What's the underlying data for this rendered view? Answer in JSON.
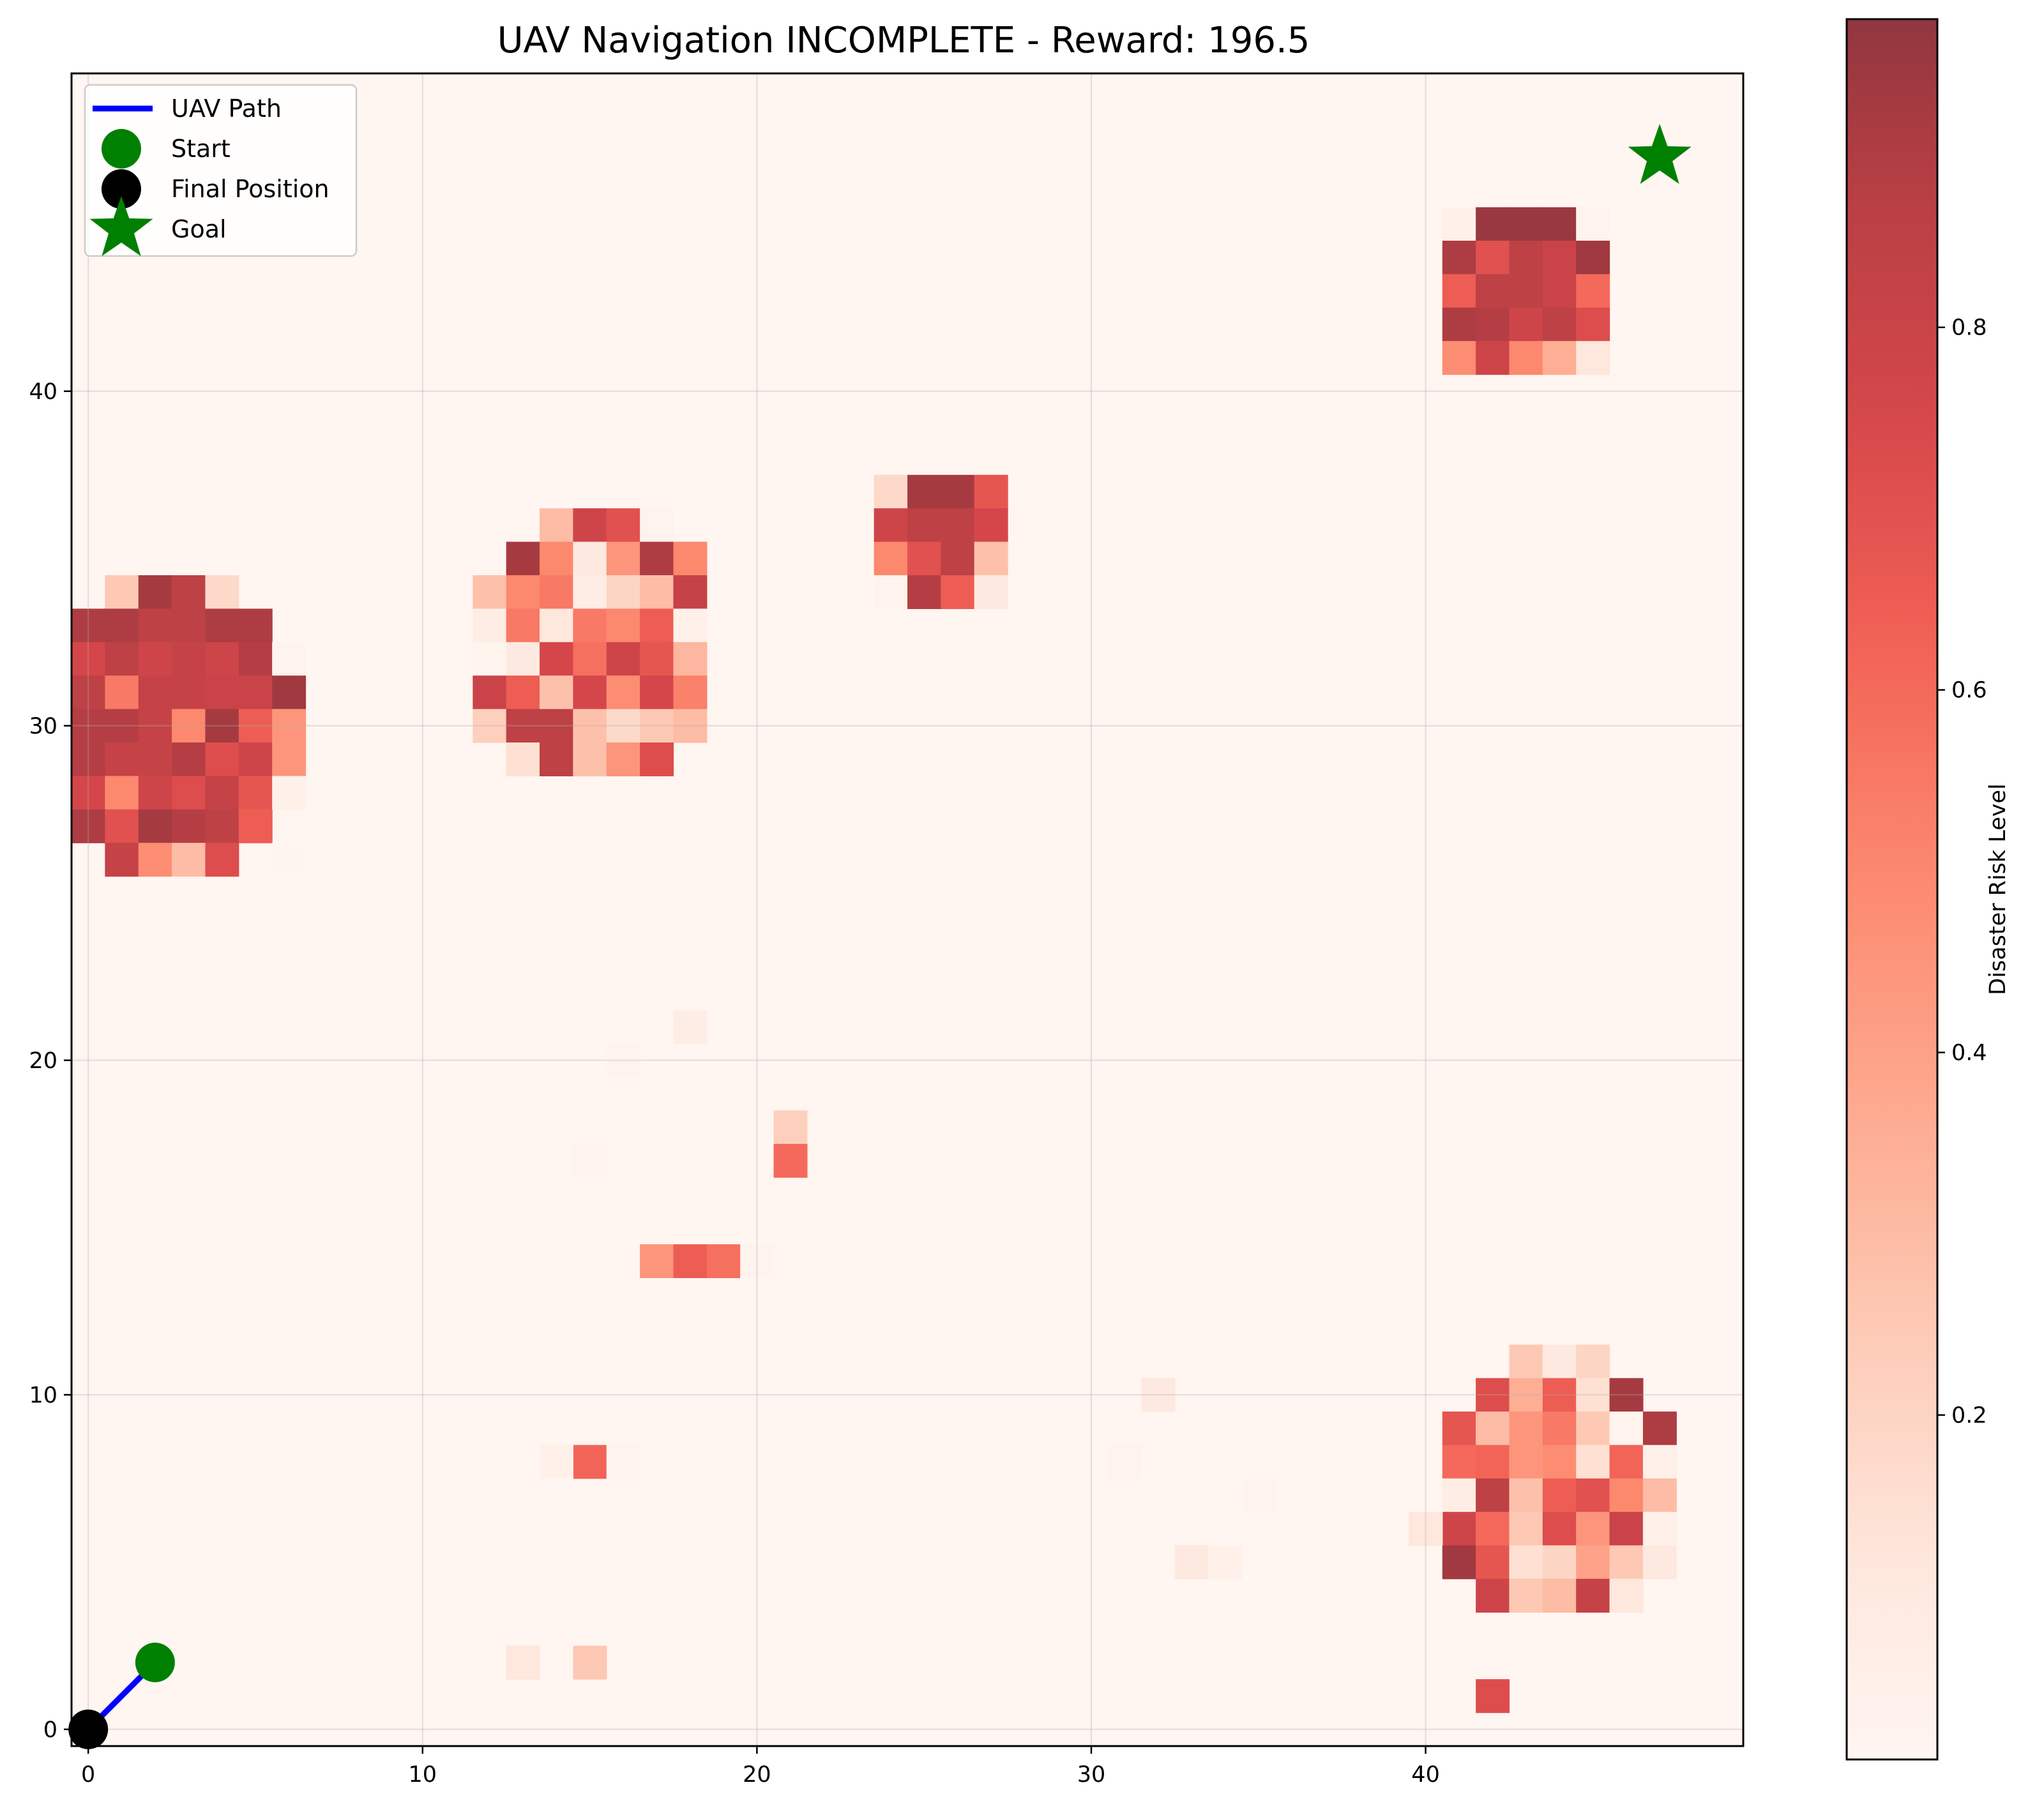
{
  "chart_data": {
    "type": "heatmap",
    "title": "UAV Navigation INCOMPLETE - Reward: 196.5",
    "xlabel": "",
    "ylabel": "",
    "xlim": [
      -0.5,
      49.5
    ],
    "ylim": [
      -0.5,
      49.5
    ],
    "x_ticks": [
      0,
      10,
      20,
      30,
      40
    ],
    "y_ticks": [
      0,
      10,
      20,
      30,
      40
    ],
    "grid": true,
    "grid_size": 50,
    "background_risk": 0.01,
    "colormap": "Reds",
    "colorbar": {
      "label": "Disaster Risk Level",
      "ticks": [
        0.2,
        0.4,
        0.6,
        0.8
      ],
      "range": [
        0.01,
        0.97
      ]
    },
    "legend": {
      "placement": "top-left",
      "items": [
        {
          "label": "UAV Path",
          "marker": "line",
          "color": "#0000ff"
        },
        {
          "label": "Start",
          "marker": "circle",
          "color": "#008000"
        },
        {
          "label": "Final Position",
          "marker": "circle",
          "color": "#000000"
        },
        {
          "label": "Goal",
          "marker": "star",
          "color": "#008000"
        }
      ]
    },
    "path": {
      "name": "UAV Path",
      "points": [
        [
          2,
          2
        ],
        [
          0,
          0
        ]
      ],
      "color": "#0000ff"
    },
    "start": {
      "x": 2,
      "y": 2,
      "color": "#008000"
    },
    "final_position": {
      "x": 0,
      "y": 0,
      "color": "#000000"
    },
    "goal": {
      "x": 47,
      "y": 47,
      "color": "#008000"
    },
    "risk_cells": [
      [
        41,
        45,
        0.05
      ],
      [
        42,
        45,
        0.95
      ],
      [
        43,
        45,
        0.95
      ],
      [
        44,
        45,
        0.95
      ],
      [
        45,
        45,
        0.03
      ],
      [
        41,
        44,
        0.9
      ],
      [
        42,
        44,
        0.7
      ],
      [
        43,
        44,
        0.85
      ],
      [
        44,
        44,
        0.8
      ],
      [
        45,
        44,
        0.93
      ],
      [
        41,
        43,
        0.65
      ],
      [
        42,
        43,
        0.85
      ],
      [
        43,
        43,
        0.85
      ],
      [
        44,
        43,
        0.8
      ],
      [
        45,
        43,
        0.6
      ],
      [
        41,
        42,
        0.9
      ],
      [
        42,
        42,
        0.88
      ],
      [
        43,
        42,
        0.78
      ],
      [
        44,
        42,
        0.85
      ],
      [
        45,
        42,
        0.72
      ],
      [
        41,
        41,
        0.48
      ],
      [
        42,
        41,
        0.78
      ],
      [
        43,
        41,
        0.5
      ],
      [
        44,
        41,
        0.35
      ],
      [
        45,
        41,
        0.12
      ],
      [
        24,
        37,
        0.18
      ],
      [
        25,
        37,
        0.92
      ],
      [
        26,
        37,
        0.92
      ],
      [
        27,
        37,
        0.68
      ],
      [
        24,
        36,
        0.78
      ],
      [
        25,
        36,
        0.85
      ],
      [
        26,
        36,
        0.85
      ],
      [
        27,
        36,
        0.75
      ],
      [
        24,
        35,
        0.5
      ],
      [
        25,
        35,
        0.7
      ],
      [
        26,
        35,
        0.85
      ],
      [
        27,
        35,
        0.28
      ],
      [
        24,
        34,
        0.03
      ],
      [
        25,
        34,
        0.88
      ],
      [
        26,
        34,
        0.65
      ],
      [
        27,
        34,
        0.1
      ],
      [
        14,
        36,
        0.3
      ],
      [
        15,
        36,
        0.78
      ],
      [
        16,
        36,
        0.7
      ],
      [
        17,
        36,
        0.03
      ],
      [
        13,
        35,
        0.92
      ],
      [
        14,
        35,
        0.5
      ],
      [
        15,
        35,
        0.1
      ],
      [
        16,
        35,
        0.45
      ],
      [
        17,
        35,
        0.9
      ],
      [
        18,
        35,
        0.5
      ],
      [
        12,
        34,
        0.28
      ],
      [
        13,
        34,
        0.5
      ],
      [
        14,
        34,
        0.55
      ],
      [
        15,
        34,
        0.08
      ],
      [
        16,
        34,
        0.2
      ],
      [
        17,
        34,
        0.3
      ],
      [
        18,
        34,
        0.82
      ],
      [
        12,
        33,
        0.08
      ],
      [
        13,
        33,
        0.55
      ],
      [
        14,
        33,
        0.12
      ],
      [
        15,
        33,
        0.55
      ],
      [
        16,
        33,
        0.5
      ],
      [
        17,
        33,
        0.65
      ],
      [
        18,
        33,
        0.05
      ],
      [
        12,
        32,
        0.03
      ],
      [
        13,
        32,
        0.1
      ],
      [
        14,
        32,
        0.75
      ],
      [
        15,
        32,
        0.58
      ],
      [
        16,
        32,
        0.78
      ],
      [
        17,
        32,
        0.68
      ],
      [
        18,
        32,
        0.32
      ],
      [
        12,
        31,
        0.8
      ],
      [
        13,
        31,
        0.65
      ],
      [
        14,
        31,
        0.28
      ],
      [
        15,
        31,
        0.75
      ],
      [
        16,
        31,
        0.48
      ],
      [
        17,
        31,
        0.75
      ],
      [
        18,
        31,
        0.52
      ],
      [
        12,
        30,
        0.22
      ],
      [
        13,
        30,
        0.85
      ],
      [
        14,
        30,
        0.85
      ],
      [
        15,
        30,
        0.28
      ],
      [
        16,
        30,
        0.18
      ],
      [
        17,
        30,
        0.25
      ],
      [
        18,
        30,
        0.3
      ],
      [
        13,
        29,
        0.15
      ],
      [
        14,
        29,
        0.85
      ],
      [
        15,
        29,
        0.28
      ],
      [
        16,
        29,
        0.45
      ],
      [
        17,
        29,
        0.72
      ],
      [
        1,
        34,
        0.25
      ],
      [
        2,
        34,
        0.92
      ],
      [
        3,
        34,
        0.85
      ],
      [
        4,
        34,
        0.18
      ],
      [
        0,
        33,
        0.9
      ],
      [
        1,
        33,
        0.9
      ],
      [
        2,
        33,
        0.85
      ],
      [
        3,
        33,
        0.85
      ],
      [
        4,
        33,
        0.9
      ],
      [
        5,
        33,
        0.9
      ],
      [
        0,
        32,
        0.75
      ],
      [
        1,
        32,
        0.85
      ],
      [
        2,
        32,
        0.78
      ],
      [
        3,
        32,
        0.82
      ],
      [
        4,
        32,
        0.78
      ],
      [
        5,
        32,
        0.88
      ],
      [
        6,
        32,
        0.03
      ],
      [
        0,
        31,
        0.85
      ],
      [
        1,
        31,
        0.55
      ],
      [
        2,
        31,
        0.82
      ],
      [
        3,
        31,
        0.82
      ],
      [
        4,
        31,
        0.8
      ],
      [
        5,
        31,
        0.8
      ],
      [
        6,
        31,
        0.93
      ],
      [
        0,
        30,
        0.88
      ],
      [
        1,
        30,
        0.88
      ],
      [
        2,
        30,
        0.82
      ],
      [
        3,
        30,
        0.5
      ],
      [
        4,
        30,
        0.92
      ],
      [
        5,
        30,
        0.65
      ],
      [
        6,
        30,
        0.45
      ],
      [
        0,
        29,
        0.88
      ],
      [
        1,
        29,
        0.82
      ],
      [
        2,
        29,
        0.82
      ],
      [
        3,
        29,
        0.88
      ],
      [
        4,
        29,
        0.72
      ],
      [
        5,
        29,
        0.78
      ],
      [
        6,
        29,
        0.45
      ],
      [
        0,
        28,
        0.75
      ],
      [
        1,
        28,
        0.5
      ],
      [
        2,
        28,
        0.78
      ],
      [
        3,
        28,
        0.72
      ],
      [
        4,
        28,
        0.82
      ],
      [
        5,
        28,
        0.68
      ],
      [
        6,
        28,
        0.05
      ],
      [
        0,
        27,
        0.9
      ],
      [
        1,
        27,
        0.7
      ],
      [
        2,
        27,
        0.92
      ],
      [
        3,
        27,
        0.88
      ],
      [
        4,
        27,
        0.85
      ],
      [
        5,
        27,
        0.65
      ],
      [
        1,
        26,
        0.82
      ],
      [
        2,
        26,
        0.48
      ],
      [
        3,
        26,
        0.3
      ],
      [
        4,
        26,
        0.72
      ],
      [
        6,
        26,
        0.02
      ],
      [
        43,
        11,
        0.25
      ],
      [
        44,
        11,
        0.1
      ],
      [
        45,
        11,
        0.2
      ],
      [
        42,
        10,
        0.72
      ],
      [
        43,
        10,
        0.35
      ],
      [
        44,
        10,
        0.65
      ],
      [
        45,
        10,
        0.15
      ],
      [
        46,
        10,
        0.92
      ],
      [
        41,
        9,
        0.68
      ],
      [
        42,
        9,
        0.3
      ],
      [
        43,
        9,
        0.45
      ],
      [
        44,
        9,
        0.55
      ],
      [
        45,
        9,
        0.25
      ],
      [
        46,
        9,
        0.03
      ],
      [
        47,
        9,
        0.9
      ],
      [
        41,
        8,
        0.6
      ],
      [
        42,
        8,
        0.62
      ],
      [
        43,
        8,
        0.45
      ],
      [
        44,
        8,
        0.48
      ],
      [
        45,
        8,
        0.15
      ],
      [
        46,
        8,
        0.62
      ],
      [
        47,
        8,
        0.05
      ],
      [
        41,
        7,
        0.08
      ],
      [
        42,
        7,
        0.85
      ],
      [
        43,
        7,
        0.28
      ],
      [
        44,
        7,
        0.65
      ],
      [
        45,
        7,
        0.7
      ],
      [
        46,
        7,
        0.5
      ],
      [
        47,
        7,
        0.3
      ],
      [
        41,
        6,
        0.78
      ],
      [
        42,
        6,
        0.6
      ],
      [
        43,
        6,
        0.25
      ],
      [
        44,
        6,
        0.72
      ],
      [
        45,
        6,
        0.45
      ],
      [
        46,
        6,
        0.8
      ],
      [
        47,
        6,
        0.05
      ],
      [
        41,
        5,
        0.93
      ],
      [
        42,
        5,
        0.68
      ],
      [
        43,
        5,
        0.15
      ],
      [
        44,
        5,
        0.2
      ],
      [
        45,
        5,
        0.4
      ],
      [
        46,
        5,
        0.25
      ],
      [
        47,
        5,
        0.1
      ],
      [
        42,
        4,
        0.78
      ],
      [
        43,
        4,
        0.25
      ],
      [
        44,
        4,
        0.3
      ],
      [
        45,
        4,
        0.82
      ],
      [
        46,
        4,
        0.12
      ],
      [
        42,
        1,
        0.72
      ],
      [
        40,
        6,
        0.12
      ],
      [
        32,
        10,
        0.1
      ],
      [
        35,
        7,
        0.03
      ],
      [
        33,
        5,
        0.1
      ],
      [
        34,
        5,
        0.05
      ],
      [
        31,
        8,
        0.03
      ],
      [
        15,
        8,
        0.62
      ],
      [
        14,
        8,
        0.05
      ],
      [
        16,
        8,
        0.03
      ],
      [
        15,
        2,
        0.25
      ],
      [
        13,
        2,
        0.12
      ],
      [
        17,
        14,
        0.45
      ],
      [
        18,
        14,
        0.65
      ],
      [
        19,
        14,
        0.58
      ],
      [
        20,
        14,
        0.03
      ],
      [
        21,
        18,
        0.22
      ],
      [
        21,
        17,
        0.6
      ],
      [
        18,
        21,
        0.08
      ],
      [
        16,
        20,
        0.03
      ],
      [
        15,
        17,
        0.03
      ]
    ]
  }
}
